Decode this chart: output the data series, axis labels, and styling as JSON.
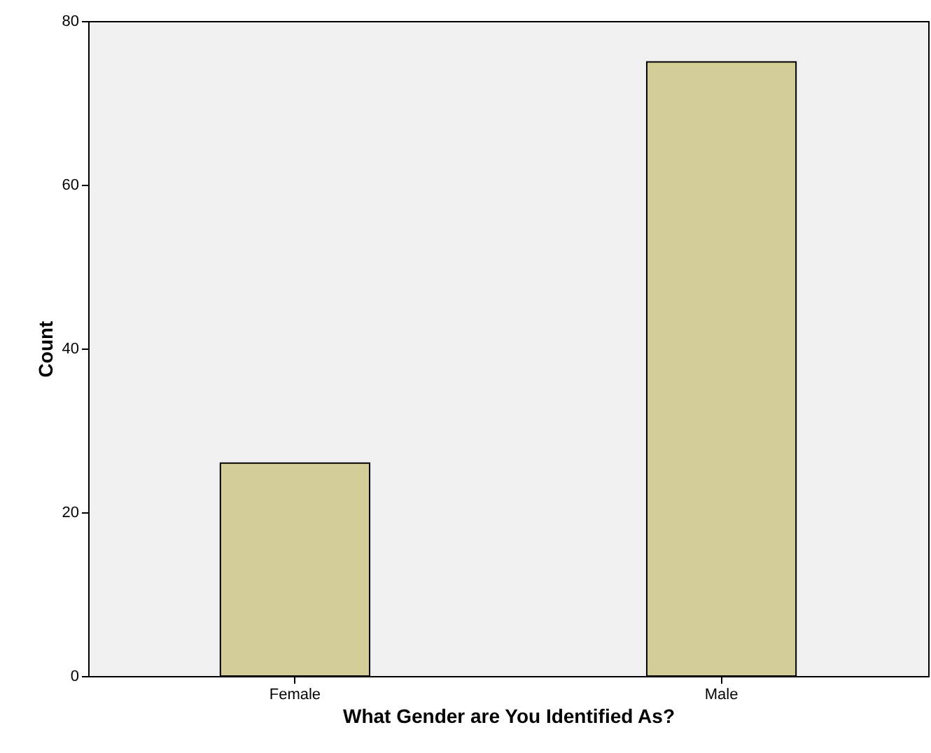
{
  "chart_data": {
    "type": "bar",
    "xlabel": "What Gender are You Identified As?",
    "ylabel": "Count",
    "categories": [
      "Female",
      "Male"
    ],
    "values": [
      26,
      75
    ],
    "color": "#d3ce97",
    "ylim": [
      0,
      80
    ],
    "yticks": [
      0,
      20,
      40,
      60,
      80
    ],
    "grid": false
  }
}
